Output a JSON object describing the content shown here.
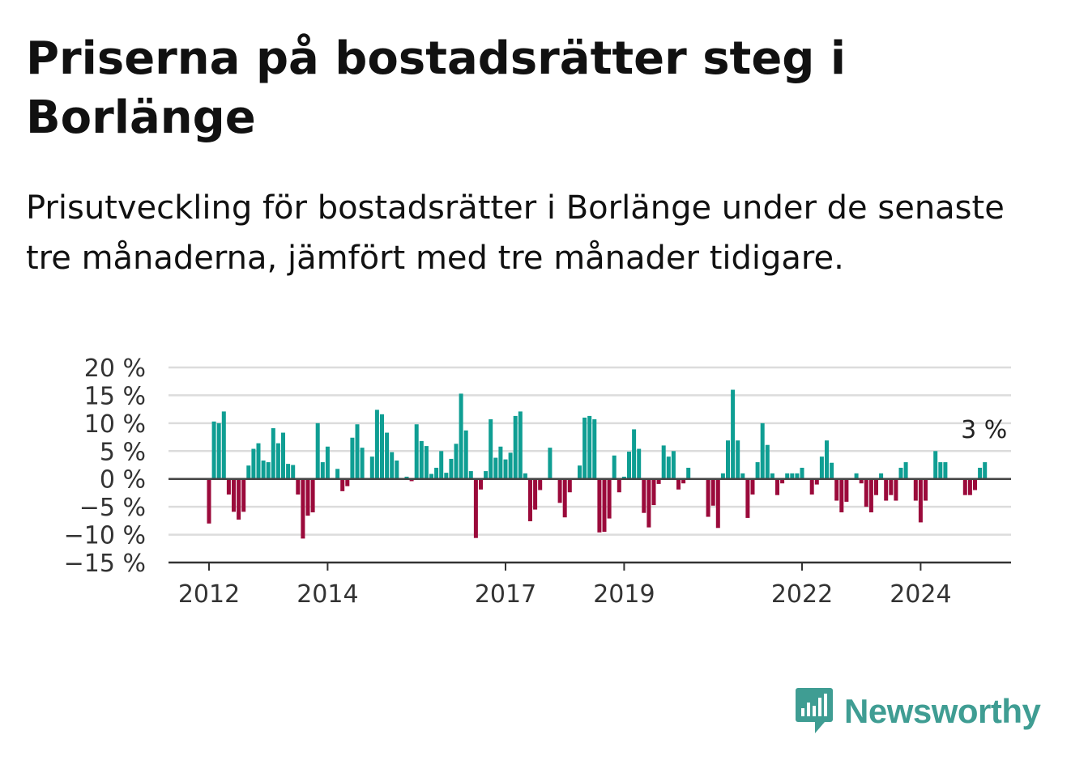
{
  "title": "Priserna på bostadsrätter steg i Borlänge",
  "subtitle": "Prisutveckling för bostadsrätter i Borlänge under de senaste tre månaderna, jämfört med tre månader tidigare.",
  "brand": {
    "name": "Newsworthy",
    "icon": "newsworthy-logo-icon"
  },
  "colors": {
    "positive": "#0f9e93",
    "negative": "#9b0a3b",
    "grid": "#dcdcdc",
    "zero_line": "#444444",
    "axis": "#333333",
    "brand": "#3f9d93"
  },
  "chart_data": {
    "type": "bar",
    "title": "Priserna på bostadsrätter steg i Borlänge",
    "subtitle": "Prisutveckling för bostadsrätter i Borlänge under de senaste tre månaderna, jämfört med tre månader tidigare.",
    "xlabel": "",
    "ylabel": "",
    "ylim": [
      -15,
      20
    ],
    "y_ticks": [
      20,
      15,
      10,
      5,
      0,
      -5,
      -10,
      -15
    ],
    "y_tick_labels": [
      "20 %",
      "15 %",
      "10 %",
      "5 %",
      "0 %",
      "−5 %",
      "−10 %",
      "−15 %"
    ],
    "x_tick_labels": [
      "2012",
      "2014",
      "2017",
      "2019",
      "2022",
      "2024"
    ],
    "x_tick_positions": [
      "2012-01",
      "2014-01",
      "2017-01",
      "2019-01",
      "2022-01",
      "2024-01"
    ],
    "start": "2012-01",
    "end": "2024-10",
    "last_value_label": "3 %",
    "grid": true,
    "legend": "none",
    "values": [
      -8,
      10.3,
      10,
      12.1,
      -2.8,
      -5.9,
      -7.3,
      -5.9,
      2.4,
      5.4,
      6.4,
      3.3,
      3,
      9.1,
      6.4,
      8.3,
      2.7,
      2.5,
      -2.8,
      -10.7,
      -6.6,
      -6,
      10,
      3,
      5.8,
      0,
      1.8,
      -2.2,
      -1.3,
      7.4,
      9.8,
      5.6,
      0,
      4,
      12.4,
      11.6,
      8.3,
      4.8,
      3.3,
      0,
      0.4,
      -0.4,
      9.8,
      6.8,
      5.9,
      0.9,
      2,
      5,
      1.1,
      3.6,
      6.3,
      15.3,
      8.7,
      1.4,
      -10.6,
      -1.9,
      1.4,
      10.7,
      3.8,
      5.8,
      3.5,
      4.7,
      11.3,
      12.1,
      1,
      -7.6,
      -5.5,
      -2,
      0,
      5.6,
      0,
      -4.3,
      -6.9,
      -2.4,
      0,
      2.4,
      11,
      11.3,
      10.7,
      -9.6,
      -9.5,
      -7.1,
      4.2,
      -2.4,
      0.4,
      4.9,
      8.9,
      5.4,
      -6.1,
      -8.7,
      -4.7,
      -0.9,
      6,
      4,
      5,
      -1.9,
      -0.8,
      2,
      0,
      0,
      0,
      -6.8,
      -4.8,
      -8.8,
      1,
      6.9,
      16,
      6.9,
      1,
      -7,
      -2.8,
      3,
      10,
      6.1,
      1,
      -2.9,
      -0.8,
      1,
      1,
      1,
      2,
      0,
      -2.8,
      -1,
      4,
      6.9,
      2.9,
      -3.9,
      -6,
      -4.1,
      0,
      1,
      -0.8,
      -5,
      -6,
      -2.9,
      1,
      -3.9,
      -2.9,
      -3.9,
      2,
      3,
      0,
      -3.9,
      -7.8,
      -3.9,
      0,
      5,
      3,
      3,
      0,
      0,
      0,
      -2.9,
      -2.9,
      -2,
      2,
      3
    ]
  }
}
